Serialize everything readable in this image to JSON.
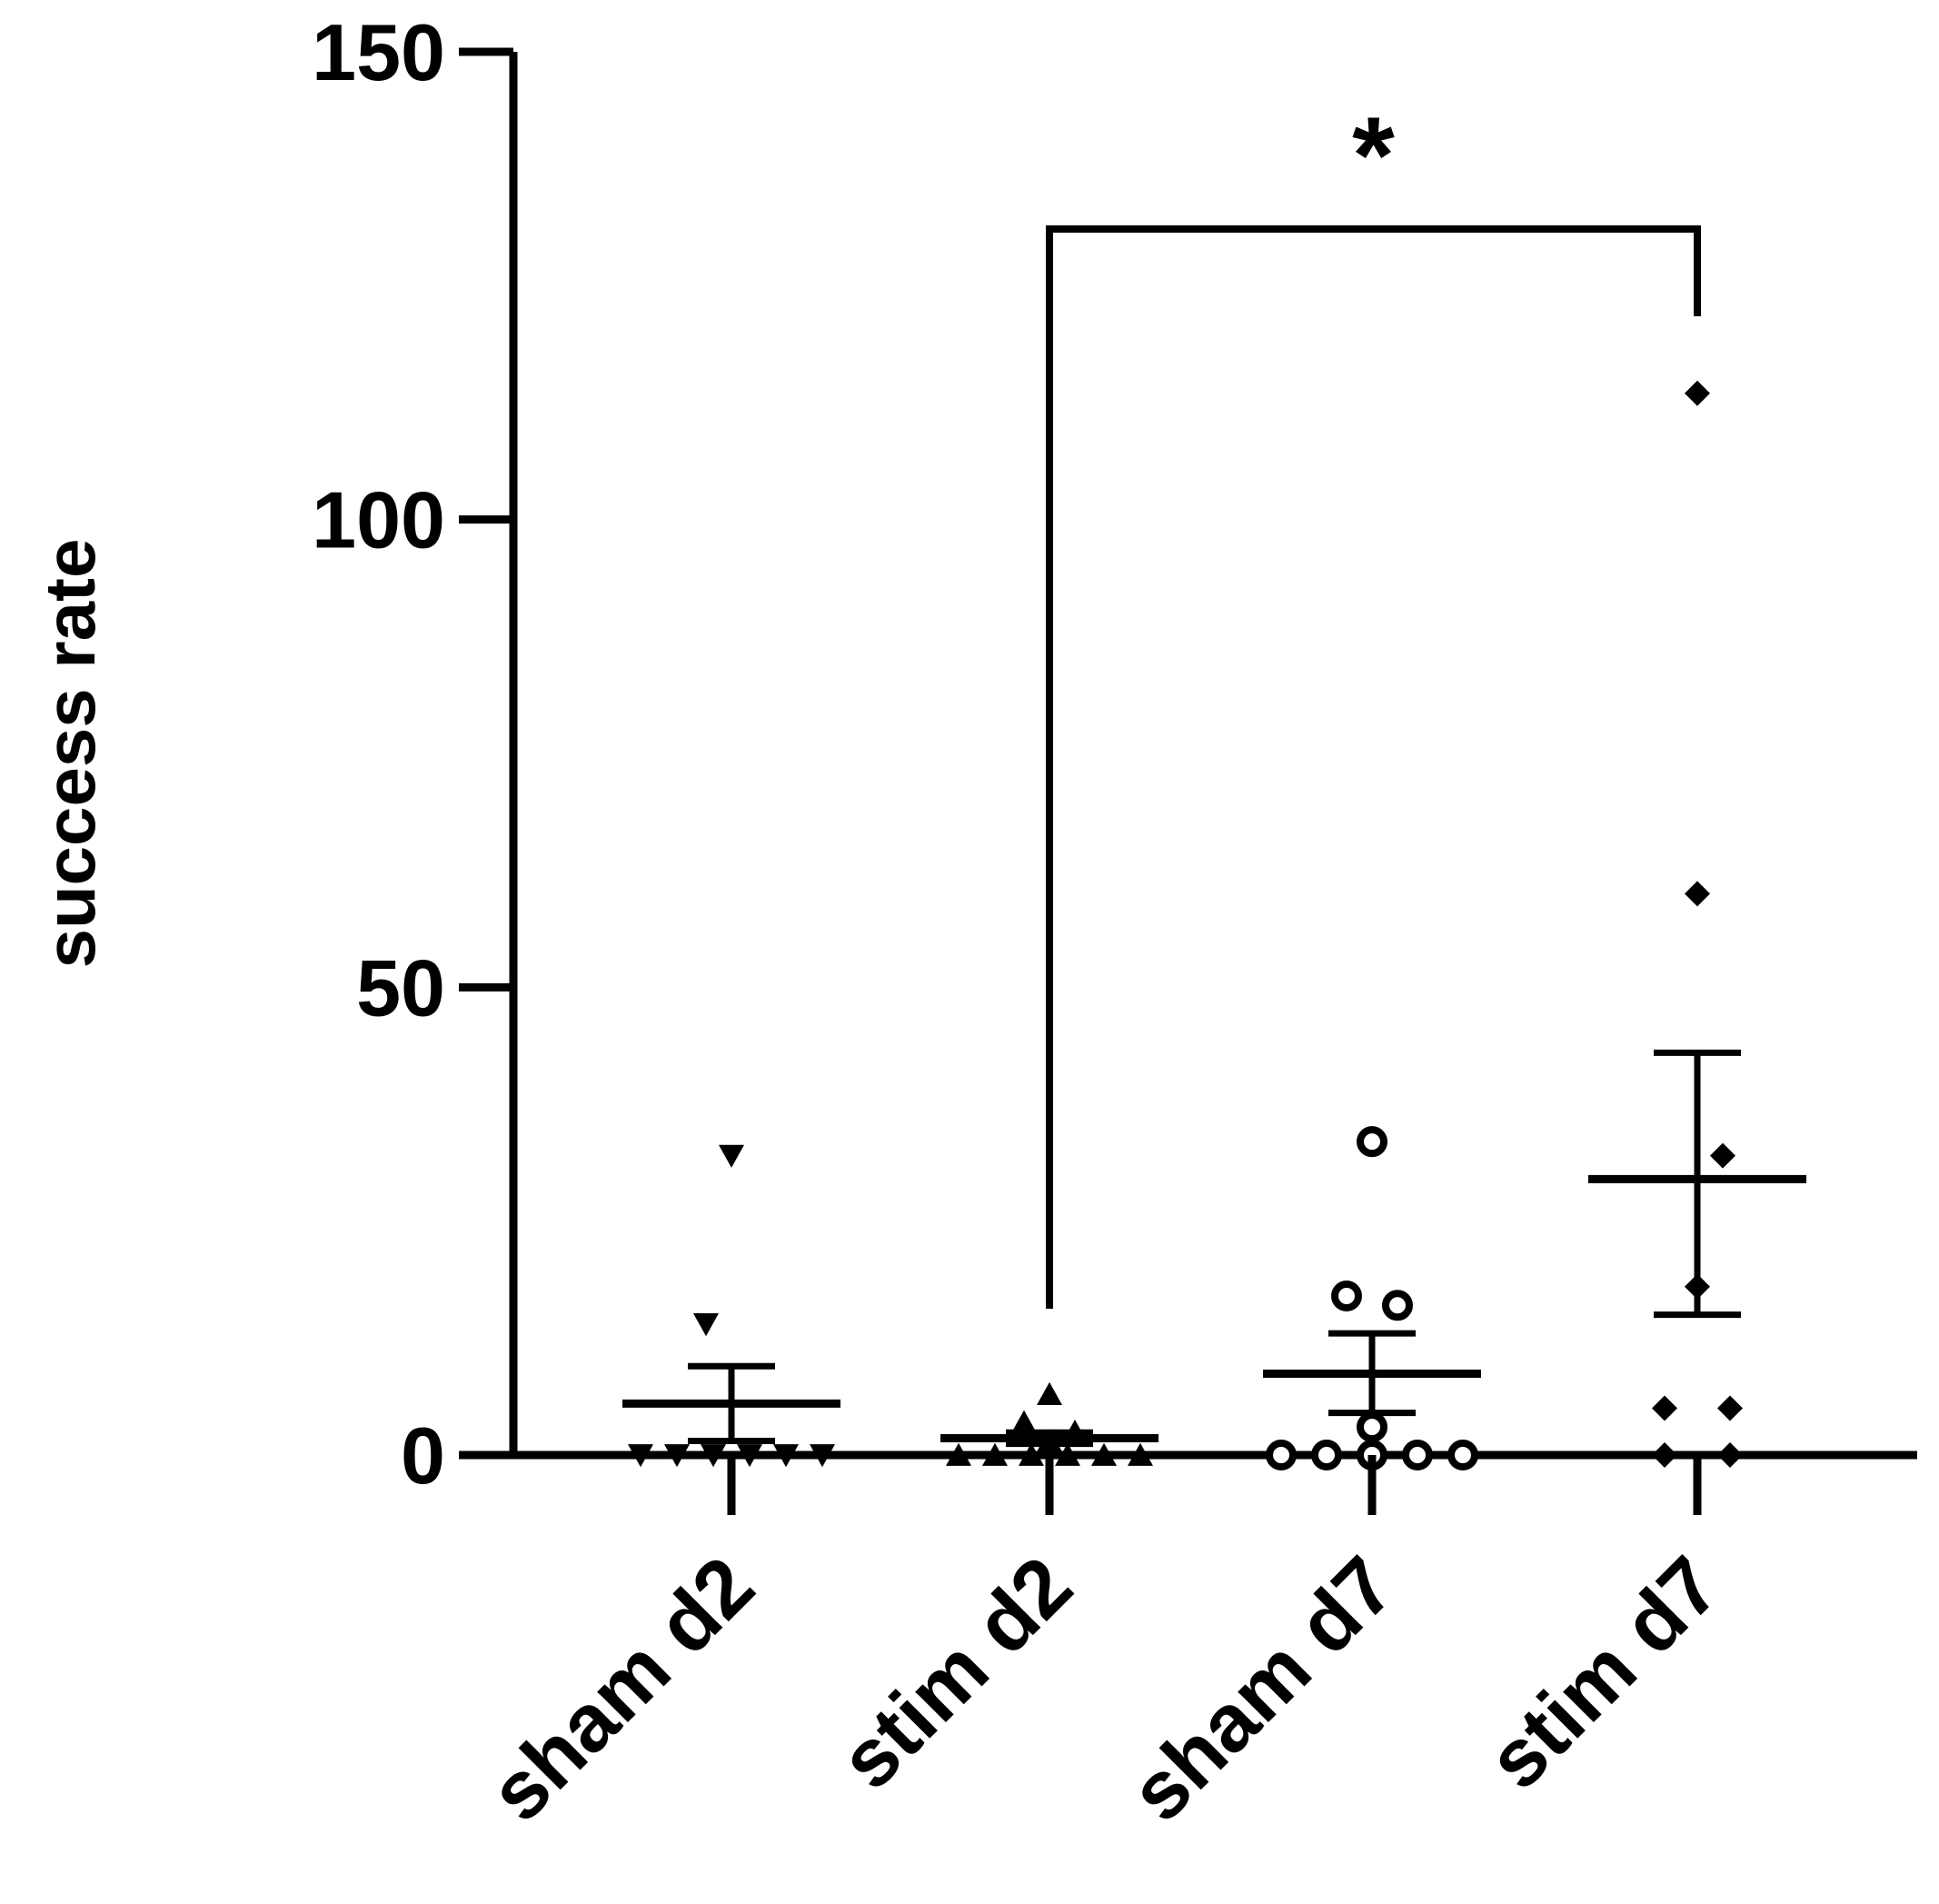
{
  "chart_data": {
    "type": "scatter",
    "subtype": "dot-plot-with-mean-sem",
    "title": "",
    "xlabel": "",
    "ylabel": "success rate",
    "ylim": [
      0,
      150
    ],
    "yticks": [
      "0",
      "50",
      "100",
      "150"
    ],
    "categories": [
      "sham d2",
      "stim d2",
      "sham d7",
      "stim d7"
    ],
    "groups": [
      {
        "category": "sham d2",
        "marker": "triangle-down",
        "values": [
          32,
          14,
          0,
          0,
          0,
          0,
          0,
          0
        ],
        "mean": 5.5,
        "sem_upper": 9.5,
        "sem_lower": 1.5
      },
      {
        "category": "stim d2",
        "marker": "triangle-up",
        "values": [
          6.5,
          3.5,
          2.5,
          1.5,
          0,
          0,
          0,
          0,
          0,
          0
        ],
        "mean": 1.8,
        "sem_upper": 2.4,
        "sem_lower": 1.2
      },
      {
        "category": "sham d7",
        "marker": "circle",
        "values": [
          33.5,
          17,
          16,
          3,
          0,
          0,
          0,
          0,
          0
        ],
        "mean": 8.7,
        "sem_upper": 13,
        "sem_lower": 4.5
      },
      {
        "category": "stim d7",
        "marker": "diamond",
        "values": [
          113.5,
          60,
          32,
          18,
          5,
          5,
          0,
          0
        ],
        "mean": 29.5,
        "sem_upper": 43,
        "sem_lower": 15
      }
    ],
    "annotations": [
      {
        "type": "significance-bracket",
        "from": "stim d2",
        "to": "stim d7",
        "label": "*"
      }
    ],
    "grid": false,
    "legend": "none"
  }
}
